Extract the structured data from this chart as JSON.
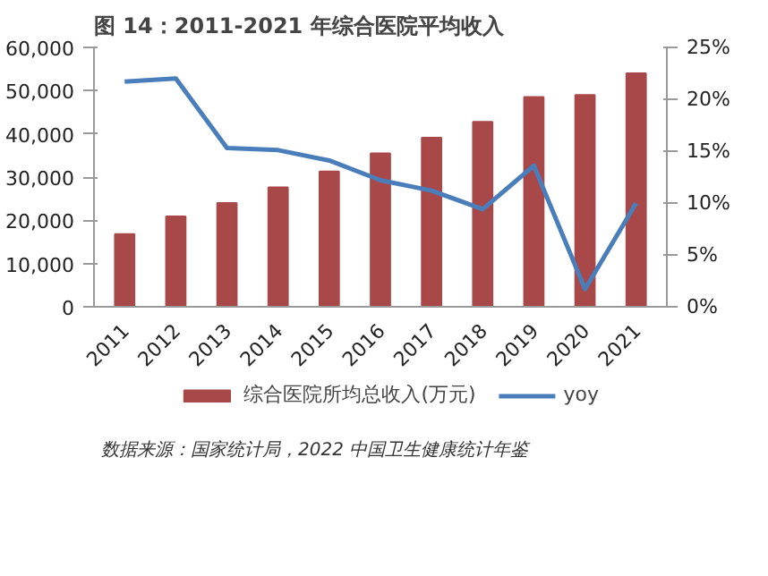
{
  "chart_data": {
    "type": "bar",
    "title": "图 14：2011-2021 年综合医院平均收入",
    "categories": [
      "2011",
      "2012",
      "2013",
      "2014",
      "2015",
      "2016",
      "2017",
      "2018",
      "2019",
      "2020",
      "2021"
    ],
    "series": [
      {
        "name": "综合医院所均总收入(万元)",
        "color": "#a84848",
        "values": [
          16800,
          20900,
          24000,
          27600,
          31300,
          35500,
          39100,
          42800,
          48500,
          49000,
          54000
        ]
      },
      {
        "name": "yoy",
        "type": "line",
        "axis": "y2",
        "color": "#4a7ebb",
        "values": [
          21.7,
          22.0,
          15.3,
          15.1,
          14.1,
          12.2,
          11.2,
          9.4,
          13.6,
          1.7,
          10.0
        ]
      }
    ],
    "ylim": [
      0,
      60000
    ],
    "yticks": [
      {
        "value": 0,
        "label": "0"
      },
      {
        "value": 10000,
        "label": "10,000"
      },
      {
        "value": 20000,
        "label": "20,000"
      },
      {
        "value": 30000,
        "label": "30,000"
      },
      {
        "value": 40000,
        "label": "40,000"
      },
      {
        "value": 50000,
        "label": "50,000"
      },
      {
        "value": 60000,
        "label": "60,000"
      }
    ],
    "y2lim": [
      0,
      25
    ],
    "y2ticks": [
      {
        "value": 0,
        "label": "0%"
      },
      {
        "value": 5,
        "label": "5%"
      },
      {
        "value": 10,
        "label": "10%"
      },
      {
        "value": 15,
        "label": "15%"
      },
      {
        "value": 20,
        "label": "20%"
      },
      {
        "value": 25,
        "label": "25%"
      }
    ],
    "grid": false,
    "legend": "bottom",
    "marker": "none",
    "line_style": "solid",
    "annotations": [
      "数据来源：国家统计局，2022 中国卫生健康统计年鉴"
    ]
  }
}
